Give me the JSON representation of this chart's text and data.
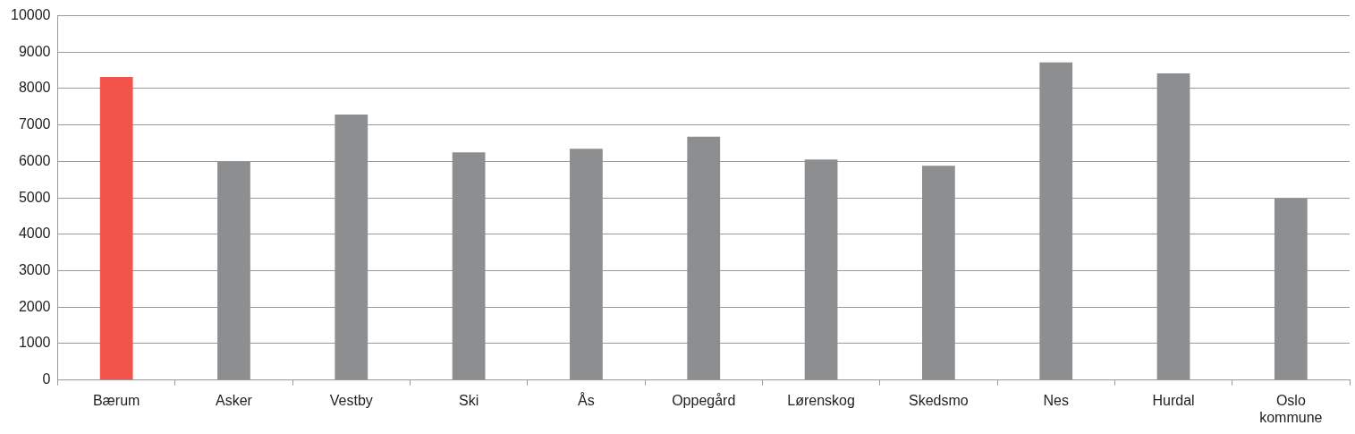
{
  "chart_data": {
    "type": "bar",
    "categories": [
      "Bærum",
      "Asker",
      "Vestby",
      "Ski",
      "Ås",
      "Oppegård",
      "Lørenskog",
      "Skedsmo",
      "Nes",
      "Hurdal",
      "Oslo kommune"
    ],
    "values": [
      8320,
      6000,
      7290,
      6250,
      6350,
      6680,
      6050,
      5880,
      8720,
      8420,
      4980
    ],
    "colors": [
      "#f2544c",
      "#8c8e8f",
      "#8c8e8f",
      "#8c8e8f",
      "#8c8e8f",
      "#8c8e8f",
      "#8c8e8f",
      "#8c8e8f",
      "#8c8e8f",
      "#8c8e8f",
      "#8c8e8f"
    ],
    "ylim": [
      0,
      10000
    ],
    "yticks": [
      0,
      1000,
      2000,
      3000,
      4000,
      5000,
      6000,
      7000,
      8000,
      9000,
      10000
    ],
    "grid": "y",
    "legend": false
  }
}
